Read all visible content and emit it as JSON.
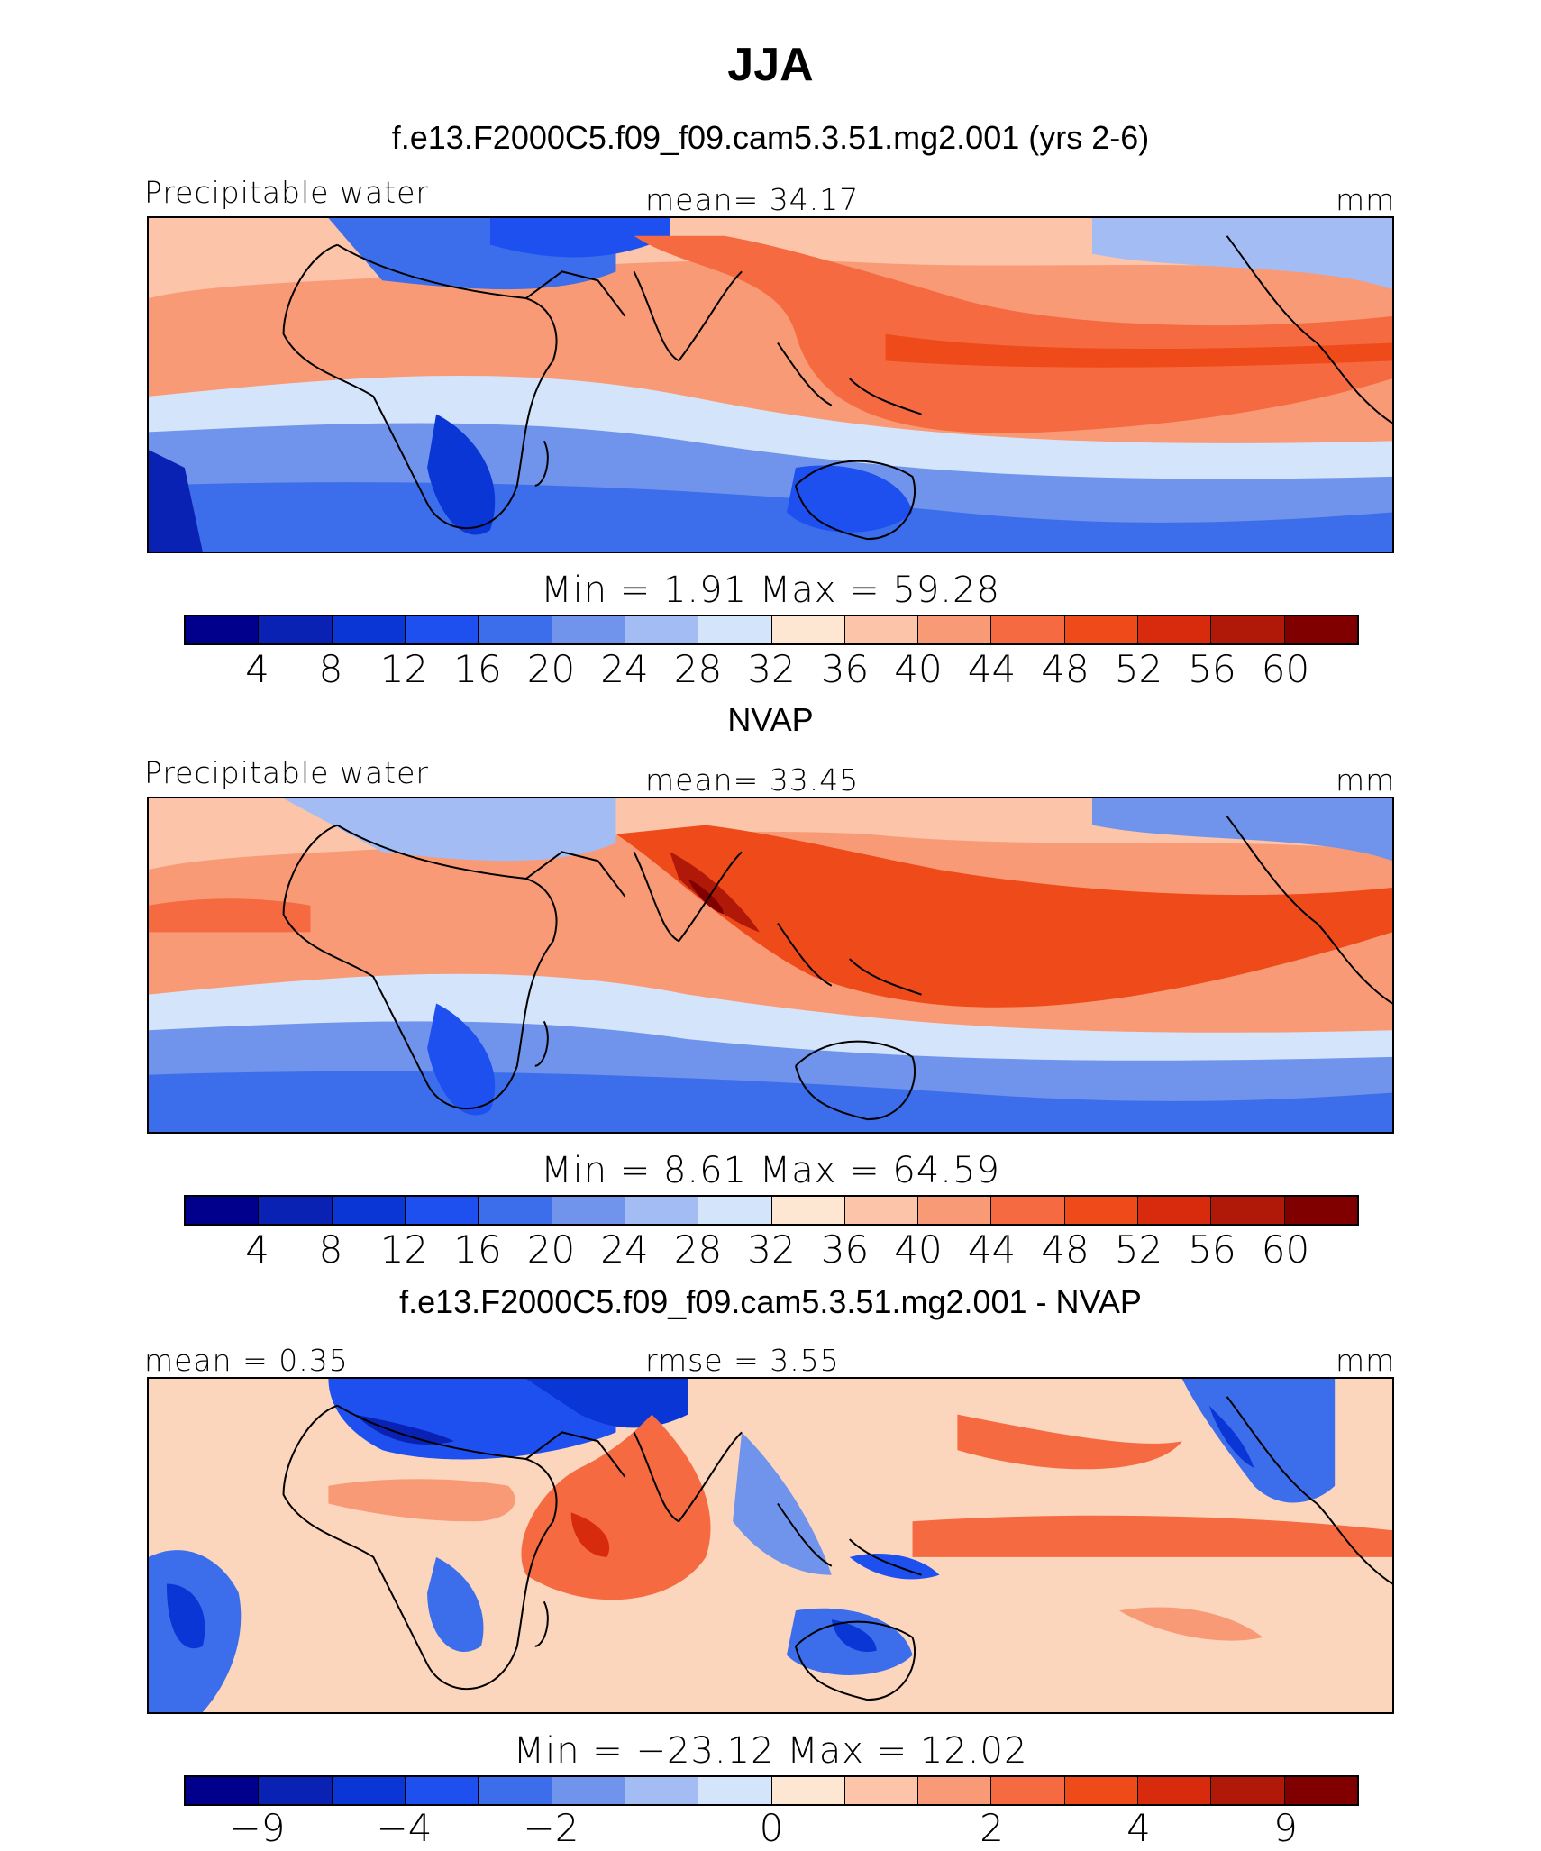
{
  "title": "JJA",
  "panels": [
    {
      "subtitle": "f.e13.F2000C5.f09_f09.cam5.3.51.mg2.001 (yrs 2-6)",
      "left_label": "Precipitable water",
      "center_label": "mean=   34.17",
      "right_label": "mm",
      "stats": "Min  =     1.91  Max  =    59.28"
    },
    {
      "subtitle": "NVAP",
      "left_label": "Precipitable water",
      "center_label": "mean=   33.45",
      "right_label": "mm",
      "stats": "Min  =     8.61  Max  =    64.59"
    },
    {
      "subtitle": "f.e13.F2000C5.f09_f09.cam5.3.51.mg2.001 - NVAP",
      "left_label": "mean  =    0.35",
      "center_label": "rmse  =    3.55",
      "right_label": "mm",
      "stats": "Min  = −23.12  Max  =    12.02"
    }
  ],
  "colorbars": [
    {
      "colors": [
        "#00008c",
        "#0a22b4",
        "#0a36d6",
        "#1e50f0",
        "#3c6eec",
        "#7094ec",
        "#a4bcf4",
        "#d4e4fa",
        "#fde6d2",
        "#fcc4a8",
        "#f99a76",
        "#f56a40",
        "#ee4a1a",
        "#d82a0c",
        "#b01808",
        "#800000"
      ],
      "labels": [
        "4",
        "8",
        "12",
        "16",
        "20",
        "24",
        "28",
        "32",
        "36",
        "40",
        "44",
        "48",
        "52",
        "56",
        "60"
      ]
    },
    {
      "colors": [
        "#00008c",
        "#0a22b4",
        "#0a36d6",
        "#1e50f0",
        "#3c6eec",
        "#7094ec",
        "#a4bcf4",
        "#d4e4fa",
        "#fde6d2",
        "#fcc4a8",
        "#f99a76",
        "#f56a40",
        "#ee4a1a",
        "#d82a0c",
        "#b01808",
        "#800000"
      ],
      "labels": [
        "4",
        "8",
        "12",
        "16",
        "20",
        "24",
        "28",
        "32",
        "36",
        "40",
        "44",
        "48",
        "52",
        "56",
        "60"
      ]
    },
    {
      "colors": [
        "#00008c",
        "#0a22b4",
        "#0a36d6",
        "#1e50f0",
        "#3c6eec",
        "#7094ec",
        "#a4bcf4",
        "#d4e4fa",
        "#fde6d2",
        "#fcc4a8",
        "#f99a76",
        "#f56a40",
        "#ee4a1a",
        "#d82a0c",
        "#b01808",
        "#800000"
      ],
      "labels": [
        "−9",
        "−4",
        "−2",
        "0",
        "2",
        "4",
        "9"
      ]
    }
  ]
}
